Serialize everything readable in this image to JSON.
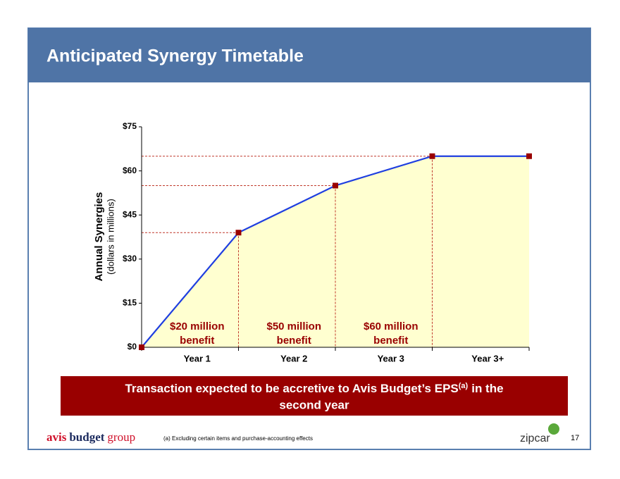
{
  "title": "Anticipated Synergy Timetable",
  "chart_data": {
    "type": "line",
    "y_label": "Annual Synergies",
    "y_sublabel": "(dollars in millions)",
    "x": [
      0,
      1,
      2,
      3,
      4
    ],
    "xlim": [
      0,
      4
    ],
    "categories": [
      "Year 1",
      "Year 2",
      "Year 3",
      "Year 3+"
    ],
    "values": [
      0,
      39,
      55,
      65,
      65
    ],
    "color": "#1f3fe0",
    "marker_color": "#990000",
    "fill_color": "#ffffd0",
    "ylim": [
      0,
      75
    ],
    "yticks": [
      {
        "value": 0,
        "label": "$0"
      },
      {
        "value": 15,
        "label": "$15"
      },
      {
        "value": 30,
        "label": "$30"
      },
      {
        "value": 45,
        "label": "$45"
      },
      {
        "value": 60,
        "label": "$60"
      },
      {
        "value": 75,
        "label": "$75"
      }
    ],
    "annotations": [
      [
        "$20 million",
        "benefit"
      ],
      [
        "$50 million",
        "benefit"
      ],
      [
        "$60 million",
        "benefit"
      ]
    ]
  },
  "callout": {
    "line1": "Transaction expected to be accretive to Avis Budget’s EPS",
    "superscript": "(a)",
    "line1_end": "in the",
    "line2": "second year"
  },
  "footer": {
    "logo_avis": "avis",
    "logo_budget": "budget",
    "logo_group": "group",
    "footnote": "(a) Excluding certain items and purchase-accounting effects",
    "logo_zipcar": "zipcar",
    "page": "17"
  }
}
